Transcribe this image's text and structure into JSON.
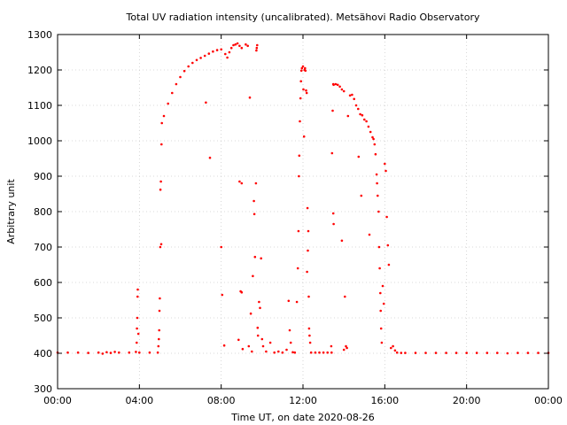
{
  "chart_data": {
    "type": "scatter",
    "title": "Total UV radiation intensity (uncalibrated). Metsähovi Radio Observatory",
    "xlabel": "Time UT, on date 2020-08-26",
    "ylabel": "Arbitrary unit",
    "x_unit": "hours UT",
    "xlim": [
      0,
      24
    ],
    "ylim": [
      300,
      1300
    ],
    "x_ticks": [
      0,
      4,
      8,
      12,
      16,
      20,
      24
    ],
    "x_tick_labels": [
      "00:00",
      "04:00",
      "08:00",
      "12:00",
      "16:00",
      "20:00",
      "00:00"
    ],
    "y_ticks": [
      300,
      400,
      500,
      600,
      700,
      800,
      900,
      1000,
      1100,
      1200,
      1300
    ],
    "y_tick_labels": [
      "300",
      "400",
      "500",
      "600",
      "700",
      "800",
      "900",
      "1000",
      "1100",
      "1200",
      "1300"
    ],
    "grid": true,
    "marker_color": "#ff0000",
    "series": [
      {
        "points": [
          [
            0.0,
            402
          ],
          [
            0.5,
            402
          ],
          [
            1.0,
            402
          ],
          [
            1.5,
            401
          ],
          [
            2.0,
            402
          ],
          [
            2.2,
            399
          ],
          [
            2.4,
            403
          ],
          [
            2.6,
            401
          ],
          [
            2.8,
            404
          ],
          [
            3.0,
            402
          ],
          [
            3.5,
            402
          ],
          [
            3.83,
            404
          ],
          [
            3.87,
            430
          ],
          [
            3.88,
            470
          ],
          [
            3.9,
            500
          ],
          [
            3.91,
            560
          ],
          [
            3.92,
            580
          ],
          [
            3.95,
            455
          ],
          [
            4.0,
            402
          ],
          [
            4.5,
            402
          ],
          [
            4.9,
            402
          ],
          [
            4.93,
            420
          ],
          [
            4.95,
            440
          ],
          [
            4.97,
            465
          ],
          [
            4.98,
            520
          ],
          [
            5.0,
            555
          ],
          [
            5.02,
            700
          ],
          [
            5.03,
            862
          ],
          [
            5.05,
            885
          ],
          [
            5.07,
            708
          ],
          [
            5.08,
            990
          ],
          [
            5.1,
            1050
          ],
          [
            5.2,
            1070
          ],
          [
            5.4,
            1105
          ],
          [
            5.6,
            1135
          ],
          [
            5.8,
            1160
          ],
          [
            6.0,
            1180
          ],
          [
            6.2,
            1197
          ],
          [
            6.4,
            1210
          ],
          [
            6.6,
            1220
          ],
          [
            6.8,
            1228
          ],
          [
            7.0,
            1234
          ],
          [
            7.2,
            1240
          ],
          [
            7.4,
            1246
          ],
          [
            7.6,
            1252
          ],
          [
            7.8,
            1256
          ],
          [
            8.0,
            1258
          ],
          [
            7.25,
            1108
          ],
          [
            7.45,
            952
          ],
          [
            8.0,
            700
          ],
          [
            8.05,
            565
          ],
          [
            8.15,
            422
          ],
          [
            8.2,
            1245
          ],
          [
            8.3,
            1235
          ],
          [
            8.4,
            1250
          ],
          [
            8.5,
            1262
          ],
          [
            8.6,
            1270
          ],
          [
            8.7,
            1272
          ],
          [
            8.8,
            1275
          ],
          [
            8.9,
            1268
          ],
          [
            9.0,
            1262
          ],
          [
            9.2,
            1272
          ],
          [
            9.3,
            1268
          ],
          [
            8.85,
            438
          ],
          [
            8.9,
            885
          ],
          [
            9.0,
            880
          ],
          [
            8.95,
            575
          ],
          [
            9.0,
            572
          ],
          [
            9.05,
            412
          ],
          [
            9.35,
            420
          ],
          [
            9.4,
            1122
          ],
          [
            9.45,
            512
          ],
          [
            9.5,
            405
          ],
          [
            9.55,
            618
          ],
          [
            9.6,
            830
          ],
          [
            9.62,
            793
          ],
          [
            9.65,
            672
          ],
          [
            9.7,
            880
          ],
          [
            9.72,
            1255
          ],
          [
            9.74,
            1262
          ],
          [
            9.76,
            1270
          ],
          [
            9.78,
            472
          ],
          [
            9.8,
            450
          ],
          [
            9.85,
            545
          ],
          [
            9.9,
            528
          ],
          [
            9.95,
            668
          ],
          [
            10.0,
            440
          ],
          [
            10.05,
            420
          ],
          [
            10.2,
            405
          ],
          [
            10.4,
            430
          ],
          [
            10.6,
            402
          ],
          [
            10.8,
            405
          ],
          [
            11.0,
            402
          ],
          [
            11.2,
            410
          ],
          [
            11.3,
            548
          ],
          [
            11.35,
            465
          ],
          [
            11.4,
            430
          ],
          [
            11.5,
            403
          ],
          [
            11.6,
            402
          ],
          [
            11.7,
            545
          ],
          [
            11.75,
            640
          ],
          [
            11.78,
            745
          ],
          [
            11.8,
            900
          ],
          [
            11.82,
            958
          ],
          [
            11.85,
            1055
          ],
          [
            11.88,
            1120
          ],
          [
            11.9,
            1168
          ],
          [
            11.92,
            1198
          ],
          [
            11.95,
            1205
          ],
          [
            12.0,
            1210
          ],
          [
            12.02,
            1145
          ],
          [
            12.05,
            1012
          ],
          [
            12.08,
            1200
          ],
          [
            12.1,
            1205
          ],
          [
            12.12,
            1198
          ],
          [
            12.15,
            1142
          ],
          [
            12.18,
            1135
          ],
          [
            12.2,
            630
          ],
          [
            12.22,
            810
          ],
          [
            12.24,
            690
          ],
          [
            12.26,
            745
          ],
          [
            12.28,
            560
          ],
          [
            12.3,
            470
          ],
          [
            12.32,
            450
          ],
          [
            12.35,
            430
          ],
          [
            12.4,
            402
          ],
          [
            12.6,
            402
          ],
          [
            12.8,
            402
          ],
          [
            13.0,
            402
          ],
          [
            13.2,
            402
          ],
          [
            13.4,
            402
          ],
          [
            13.38,
            420
          ],
          [
            13.42,
            965
          ],
          [
            13.45,
            1085
          ],
          [
            13.48,
            1160
          ],
          [
            13.5,
            1158
          ],
          [
            13.6,
            1160
          ],
          [
            13.7,
            1158
          ],
          [
            13.8,
            1153
          ],
          [
            13.9,
            1145
          ],
          [
            14.0,
            1140
          ],
          [
            13.48,
            795
          ],
          [
            13.5,
            765
          ],
          [
            13.9,
            718
          ],
          [
            14.0,
            410
          ],
          [
            14.05,
            560
          ],
          [
            14.1,
            420
          ],
          [
            14.15,
            415
          ],
          [
            14.2,
            1070
          ],
          [
            14.3,
            1128
          ],
          [
            14.4,
            1130
          ],
          [
            14.5,
            1118
          ],
          [
            14.6,
            1100
          ],
          [
            14.7,
            1090
          ],
          [
            14.72,
            955
          ],
          [
            14.8,
            1075
          ],
          [
            14.85,
            845
          ],
          [
            14.9,
            1072
          ],
          [
            15.0,
            1060
          ],
          [
            15.1,
            1055
          ],
          [
            15.2,
            1040
          ],
          [
            15.25,
            735
          ],
          [
            15.3,
            1025
          ],
          [
            15.4,
            1010
          ],
          [
            15.45,
            1005
          ],
          [
            15.5,
            990
          ],
          [
            15.55,
            962
          ],
          [
            15.6,
            905
          ],
          [
            15.62,
            880
          ],
          [
            15.65,
            845
          ],
          [
            15.7,
            800
          ],
          [
            15.72,
            700
          ],
          [
            15.75,
            640
          ],
          [
            15.78,
            570
          ],
          [
            15.8,
            520
          ],
          [
            15.82,
            470
          ],
          [
            15.85,
            430
          ],
          [
            15.9,
            590
          ],
          [
            15.95,
            540
          ],
          [
            16.0,
            935
          ],
          [
            16.05,
            915
          ],
          [
            16.1,
            785
          ],
          [
            16.15,
            705
          ],
          [
            16.2,
            650
          ],
          [
            16.3,
            415
          ],
          [
            16.4,
            420
          ],
          [
            16.5,
            408
          ],
          [
            16.6,
            402
          ],
          [
            16.8,
            401
          ],
          [
            17.0,
            401
          ],
          [
            17.5,
            401
          ],
          [
            18.0,
            401
          ],
          [
            18.5,
            401
          ],
          [
            19.0,
            401
          ],
          [
            19.5,
            401
          ],
          [
            20.0,
            401
          ],
          [
            20.5,
            401
          ],
          [
            21.0,
            401
          ],
          [
            21.5,
            401
          ],
          [
            22.0,
            400
          ],
          [
            22.5,
            401
          ],
          [
            23.0,
            401
          ],
          [
            23.5,
            401
          ],
          [
            24.0,
            401
          ]
        ]
      }
    ]
  }
}
